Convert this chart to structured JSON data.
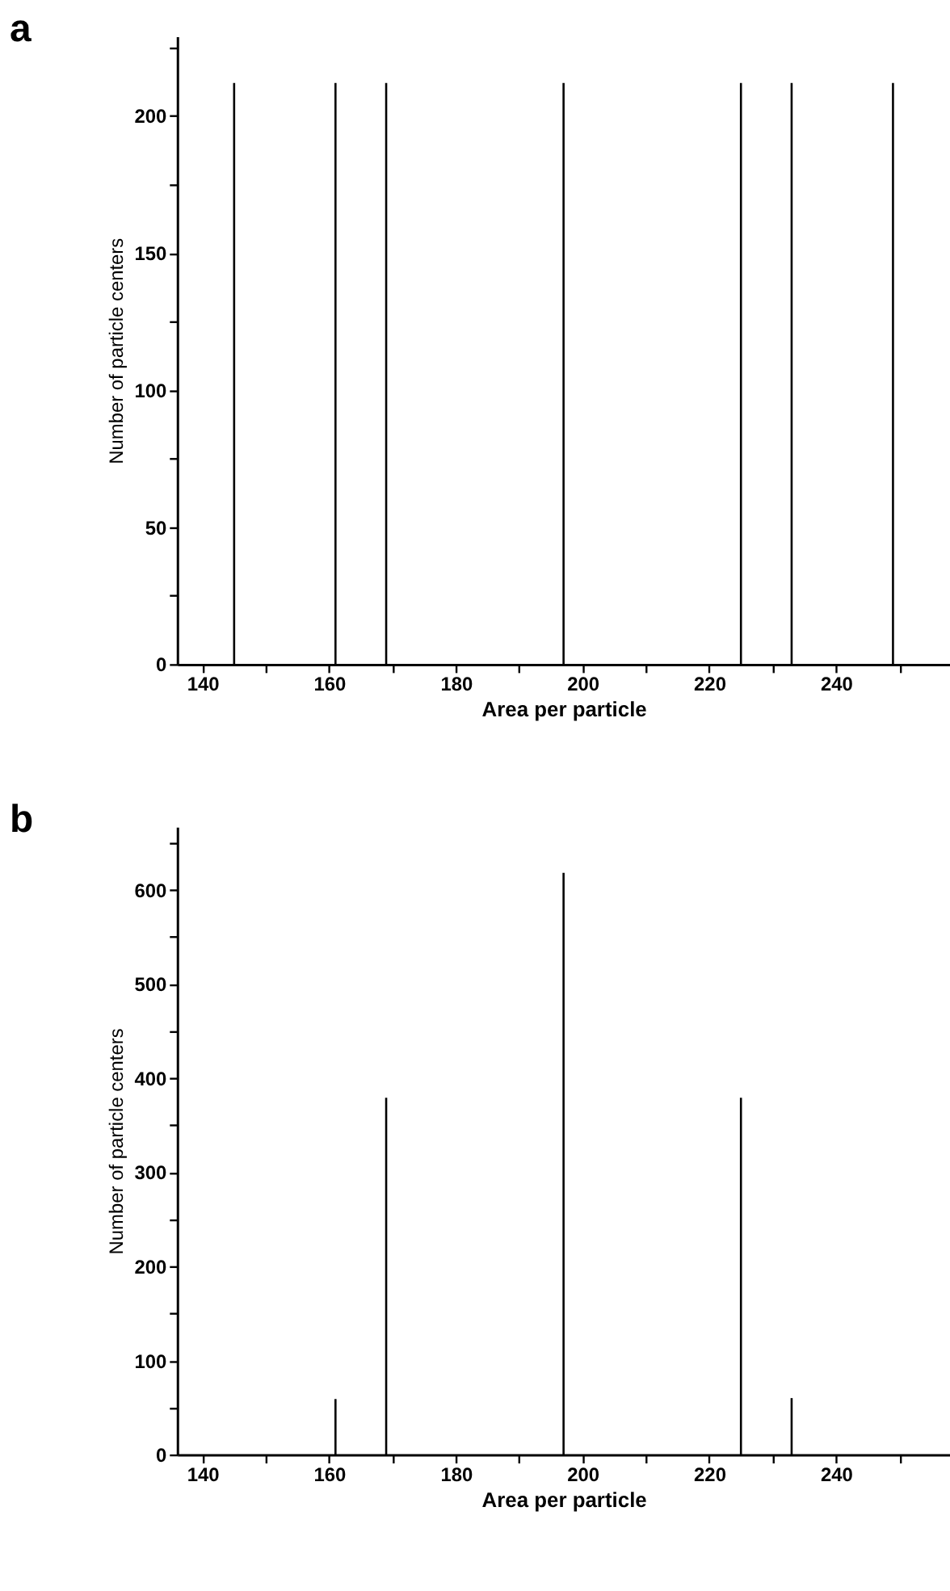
{
  "chart_data": [
    {
      "type": "bar",
      "title": "a",
      "xlabel": "Area per particle",
      "ylabel": "Number of particle centers",
      "x": [
        145,
        161,
        169,
        197,
        225,
        233,
        249
      ],
      "series": [
        {
          "color": "#000000",
          "values": [
            212,
            212,
            212,
            212,
            212,
            212,
            212
          ]
        }
      ],
      "xlim": [
        136,
        258
      ],
      "ylim": [
        0,
        229
      ],
      "xticks": [
        140,
        {
          "value": 150,
          "label": null
        },
        160,
        {
          "value": 170,
          "label": null
        },
        180,
        {
          "value": 190,
          "label": null
        },
        200,
        {
          "value": 210,
          "label": null
        },
        220,
        {
          "value": 230,
          "label": null
        },
        240,
        {
          "value": 250,
          "label": null
        }
      ],
      "yticks": [
        0,
        {
          "value": 25,
          "label": null
        },
        50,
        {
          "value": 75,
          "label": null
        },
        100,
        {
          "value": 125,
          "label": null
        },
        150,
        {
          "value": 175,
          "label": null
        },
        200,
        {
          "value": 225,
          "label": null
        }
      ],
      "grid": false
    },
    {
      "type": "bar",
      "title": "b",
      "xlabel": "Area per particle",
      "ylabel": "Number of particle centers",
      "x": [
        161,
        169,
        197,
        225,
        233
      ],
      "series": [
        {
          "color": "#000000",
          "values": [
            59,
            379,
            618,
            379,
            60
          ]
        }
      ],
      "xlim": [
        136,
        258
      ],
      "ylim": [
        0,
        667
      ],
      "xticks": [
        140,
        {
          "value": 150,
          "label": null
        },
        160,
        {
          "value": 170,
          "label": null
        },
        180,
        {
          "value": 190,
          "label": null
        },
        200,
        {
          "value": 210,
          "label": null
        },
        220,
        {
          "value": 230,
          "label": null
        },
        240,
        {
          "value": 250,
          "label": null
        }
      ],
      "yticks": [
        0,
        {
          "value": 50,
          "label": null
        },
        100,
        {
          "value": 150,
          "label": null
        },
        200,
        {
          "value": 250,
          "label": null
        },
        300,
        {
          "value": 350,
          "label": null
        },
        400,
        {
          "value": 450,
          "label": null
        },
        500,
        {
          "value": 550,
          "label": null
        },
        600,
        {
          "value": 650,
          "label": null
        }
      ],
      "grid": false
    }
  ]
}
